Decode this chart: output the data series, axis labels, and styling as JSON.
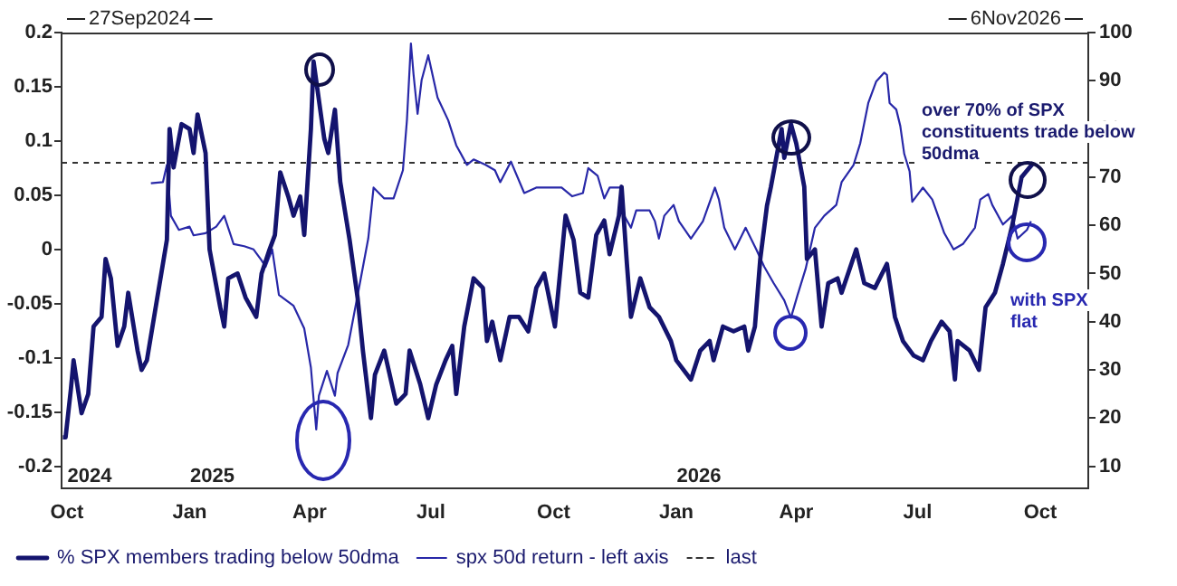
{
  "chart_data": {
    "type": "line",
    "xlim": [
      "2024-09-27",
      "2026-11-06"
    ],
    "xticks": [
      {
        "value": "2024-10-01",
        "label": "Oct"
      },
      {
        "value": "2025-01-01",
        "label": "Jan"
      },
      {
        "value": "2025-04-01",
        "label": "Apr"
      },
      {
        "value": "2025-07-01",
        "label": "Jul"
      },
      {
        "value": "2025-10-01",
        "label": "Oct"
      },
      {
        "value": "2026-01-01",
        "label": "Jan"
      },
      {
        "value": "2026-04-01",
        "label": "Apr"
      },
      {
        "value": "2026-07-01",
        "label": "Jul"
      },
      {
        "value": "2026-10-01",
        "label": "Oct"
      }
    ],
    "x2lim": [
      "2024-09-27",
      "2026-11-06"
    ],
    "x2ticks": [
      {
        "value": "2024-10-18",
        "label": "2024"
      },
      {
        "value": "2025-01-18",
        "label": "2025"
      },
      {
        "value": "2026-01-18",
        "label": "2026"
      }
    ],
    "ylim": [
      -0.22,
      0.2
    ],
    "yticks": [
      -0.2,
      -0.15,
      -0.1,
      -0.05,
      0,
      0.05,
      0.1,
      0.15,
      0.2
    ],
    "y2lim": [
      5.5,
      100
    ],
    "y2ticks": [
      10,
      20,
      30,
      40,
      50,
      60,
      70,
      80,
      90,
      100
    ],
    "legend": "bottom",
    "marker": "none",
    "line_style": "solid",
    "series": [
      {
        "name": "% SPX members trading below 50dma",
        "color": "#14146e",
        "axis": "y2",
        "x": [
          "2024-09-28",
          "2024-09-30",
          "2024-10-04",
          "2024-10-06",
          "2024-10-12",
          "2024-10-17",
          "2024-10-21",
          "2024-10-27",
          "2024-10-30",
          "2024-11-03",
          "2024-11-08",
          "2024-11-13",
          "2024-11-16",
          "2024-11-23",
          "2024-11-26",
          "2024-11-30",
          "2024-12-06",
          "2024-12-15",
          "2024-12-17",
          "2024-12-20",
          "2024-12-26",
          "2025-01-01",
          "2025-01-04",
          "2025-01-07",
          "2025-01-13",
          "2025-01-16",
          "2025-01-24",
          "2025-01-27",
          "2025-01-30",
          "2025-02-06",
          "2025-02-12",
          "2025-02-20",
          "2025-02-24",
          "2025-03-02",
          "2025-03-06",
          "2025-03-10",
          "2025-03-16",
          "2025-03-20",
          "2025-03-25",
          "2025-03-28",
          "2025-04-02",
          "2025-04-04",
          "2025-04-06",
          "2025-04-12",
          "2025-04-15",
          "2025-04-20",
          "2025-04-24",
          "2025-05-01",
          "2025-05-07",
          "2025-05-11",
          "2025-05-17",
          "2025-05-20",
          "2025-05-27",
          "2025-06-05",
          "2025-06-12",
          "2025-06-15",
          "2025-06-23",
          "2025-06-29",
          "2025-07-05",
          "2025-07-12",
          "2025-07-17",
          "2025-07-20",
          "2025-07-26",
          "2025-08-02",
          "2025-08-09",
          "2025-08-12",
          "2025-08-16",
          "2025-08-22",
          "2025-08-29",
          "2025-09-05",
          "2025-09-12",
          "2025-09-18",
          "2025-09-24",
          "2025-10-02",
          "2025-10-10",
          "2025-10-16",
          "2025-10-21",
          "2025-10-27",
          "2025-11-02",
          "2025-11-08",
          "2025-11-12",
          "2025-11-19",
          "2025-11-21",
          "2025-11-25",
          "2025-11-28",
          "2025-12-05",
          "2025-12-12",
          "2025-12-19",
          "2025-12-28",
          "2026-01-01",
          "2026-01-12",
          "2026-01-19",
          "2026-01-26",
          "2026-01-29",
          "2026-02-05",
          "2026-02-13",
          "2026-02-21",
          "2026-02-24",
          "2026-03-01",
          "2026-03-05",
          "2026-03-10",
          "2026-03-13",
          "2026-03-19",
          "2026-03-21",
          "2026-03-23",
          "2026-03-28",
          "2026-04-01",
          "2026-04-07",
          "2026-04-09",
          "2026-04-15",
          "2026-04-20",
          "2026-04-25",
          "2026-05-02",
          "2026-05-05",
          "2026-05-16",
          "2026-05-22",
          "2026-05-30",
          "2026-06-08",
          "2026-06-14",
          "2026-06-20",
          "2026-06-28",
          "2026-07-05",
          "2026-07-11",
          "2026-07-19",
          "2026-07-25",
          "2026-07-29",
          "2026-07-31",
          "2026-08-09",
          "2026-08-16",
          "2026-08-21",
          "2026-08-28",
          "2026-09-03",
          "2026-09-10",
          "2026-09-17",
          "2026-09-20",
          "2026-09-26"
        ],
        "values": [
          16,
          16,
          26,
          32,
          21,
          25,
          39,
          41,
          53,
          49,
          35,
          39,
          46,
          34,
          30,
          32,
          42,
          57,
          80,
          72,
          81,
          80,
          75,
          83,
          75,
          55,
          43,
          39,
          49,
          50,
          45,
          41,
          50,
          55,
          58,
          71,
          66,
          62,
          66,
          58,
          80,
          94,
          90,
          78,
          75,
          84,
          69,
          57,
          45,
          34,
          20,
          29,
          34,
          23,
          25,
          34,
          27,
          20,
          27,
          32,
          35,
          25,
          39,
          49,
          47,
          36,
          40,
          32,
          41,
          41,
          38,
          47,
          50,
          39,
          62,
          57,
          46,
          45,
          58,
          61,
          54,
          62,
          68,
          52,
          41,
          49,
          43,
          41,
          36,
          32,
          28,
          34,
          36,
          32,
          39,
          38,
          39,
          34,
          39,
          53,
          64,
          68,
          77,
          80,
          74,
          81,
          77,
          68,
          53,
          55,
          39,
          48,
          49,
          46,
          55,
          48,
          47,
          52,
          41,
          36,
          33,
          32,
          36,
          40,
          38,
          28,
          36,
          34,
          30,
          43,
          46,
          52,
          60,
          70,
          71,
          73
        ]
      },
      {
        "name": "spx 50d return - left axis",
        "color": "#2828a8",
        "x": [
          "2024-12-03",
          "2024-12-12",
          "2024-12-15",
          "2024-12-18",
          "2024-12-24",
          "2025-01-01",
          "2025-01-04",
          "2025-01-13",
          "2025-01-21",
          "2025-01-27",
          "2025-02-03",
          "2025-02-11",
          "2025-02-18",
          "2025-02-24",
          "2025-02-27",
          "2025-03-04",
          "2025-03-09",
          "2025-03-20",
          "2025-03-28",
          "2025-04-02",
          "2025-04-04",
          "2025-04-06",
          "2025-04-08",
          "2025-04-14",
          "2025-04-20",
          "2025-04-22",
          "2025-04-30",
          "2025-05-08",
          "2025-05-15",
          "2025-05-19",
          "2025-05-27",
          "2025-06-03",
          "2025-06-10",
          "2025-06-13",
          "2025-06-16",
          "2025-06-18",
          "2025-06-21",
          "2025-06-24",
          "2025-06-29",
          "2025-07-06",
          "2025-07-14",
          "2025-07-20",
          "2025-07-28",
          "2025-08-02",
          "2025-08-11",
          "2025-08-18",
          "2025-08-22",
          "2025-08-30",
          "2025-09-09",
          "2025-09-18",
          "2025-09-26",
          "2025-10-07",
          "2025-10-15",
          "2025-10-23",
          "2025-10-27",
          "2025-11-03",
          "2025-11-08",
          "2025-11-12",
          "2025-11-20",
          "2025-11-23",
          "2025-11-28",
          "2025-12-02",
          "2025-12-12",
          "2025-12-16",
          "2025-12-19",
          "2025-12-23",
          "2025-12-30",
          "2026-01-03",
          "2026-01-12",
          "2026-01-21",
          "2026-01-30",
          "2026-02-02",
          "2026-02-06",
          "2026-02-14",
          "2026-02-22",
          "2026-03-02",
          "2026-03-08",
          "2026-03-15",
          "2026-03-23",
          "2026-03-28",
          "2026-04-02",
          "2026-04-08",
          "2026-04-15",
          "2026-04-22",
          "2026-05-01",
          "2026-05-05",
          "2026-05-14",
          "2026-05-19",
          "2026-05-25",
          "2026-05-31",
          "2026-06-06",
          "2026-06-08",
          "2026-06-10",
          "2026-06-15",
          "2026-06-18",
          "2026-06-21",
          "2026-06-25",
          "2026-06-27",
          "2026-07-05",
          "2026-07-12",
          "2026-07-21",
          "2026-07-28",
          "2026-08-04",
          "2026-08-13",
          "2026-08-17",
          "2026-08-23",
          "2026-08-26",
          "2026-09-03",
          "2026-09-10",
          "2026-09-14",
          "2026-09-21",
          "2026-09-24"
        ],
        "values": [
          0.061,
          0.062,
          0.078,
          0.031,
          0.018,
          0.021,
          0.013,
          0.015,
          0.021,
          0.031,
          0.005,
          0.003,
          0,
          -0.01,
          -0.016,
          0,
          -0.042,
          -0.052,
          -0.073,
          -0.109,
          -0.138,
          -0.166,
          -0.135,
          -0.112,
          -0.135,
          -0.114,
          -0.088,
          -0.036,
          0.01,
          0.057,
          0.047,
          0.047,
          0.073,
          0.119,
          0.19,
          0.161,
          0.125,
          0.156,
          0.179,
          0.14,
          0.119,
          0.096,
          0.078,
          0.083,
          0.078,
          0.073,
          0.062,
          0.081,
          0.052,
          0.057,
          0.057,
          0.057,
          0.049,
          0.052,
          0.075,
          0.068,
          0.047,
          0.057,
          0.057,
          0.031,
          0.02,
          0.036,
          0.036,
          0.026,
          0.01,
          0.031,
          0.041,
          0.026,
          0.01,
          0.026,
          0.057,
          0.046,
          0.02,
          0,
          0.02,
          0,
          -0.016,
          -0.031,
          -0.047,
          -0.063,
          -0.042,
          -0.018,
          0.02,
          0.031,
          0.041,
          0.062,
          0.078,
          0.098,
          0.135,
          0.155,
          0.163,
          0.161,
          0.135,
          0.129,
          0.114,
          0.088,
          0.072,
          0.044,
          0.057,
          0.046,
          0.015,
          0,
          0.005,
          0.02,
          0.046,
          0.051,
          0.041,
          0.023,
          0.031,
          0.01,
          0.018,
          0.026
        ]
      }
    ],
    "ref_lines": [
      {
        "axis": "y2",
        "value": 73,
        "label": "last",
        "line_style": "dashed",
        "color": "#333333"
      }
    ],
    "annotations": [
      "27Sep2024",
      "6Nov2026",
      "over 70% of SPX constituents trade below 50dma",
      "with SPX flat"
    ]
  }
}
